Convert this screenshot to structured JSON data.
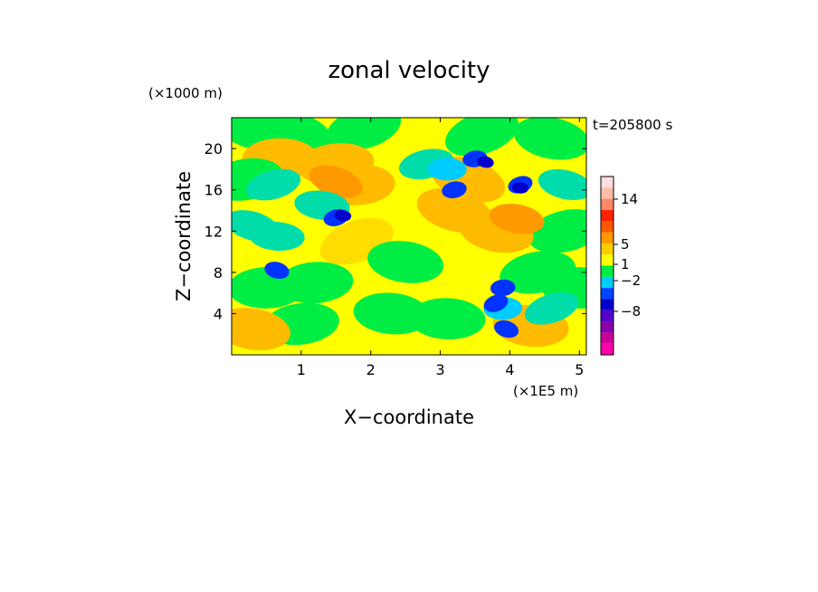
{
  "chart_data": {
    "type": "heatmap",
    "title": "zonal velocity",
    "xlabel": "X−coordinate",
    "ylabel": "Z−coordinate",
    "x_unit": "(×1E5 m)",
    "y_unit": "(×1000 m)",
    "time_label": "t=205800 s",
    "xlim": [
      0,
      5.1
    ],
    "ylim": [
      0,
      23
    ],
    "x_ticks": [
      "1",
      "2",
      "3",
      "4",
      "5"
    ],
    "x_tick_values": [
      1,
      2,
      3,
      4,
      5
    ],
    "y_ticks": [
      "4",
      "8",
      "12",
      "16",
      "20"
    ],
    "y_tick_values": [
      4,
      8,
      12,
      16,
      20
    ],
    "colorbar": {
      "tick_labels": [
        "14",
        "5",
        "1",
        "−2",
        "−8"
      ],
      "tick_values": [
        14,
        5,
        1,
        -2,
        -8
      ],
      "colors": [
        "#ff00aa",
        "#cc0099",
        "#8800aa",
        "#5500cc",
        "#0000cc",
        "#0044ff",
        "#00ccff",
        "#00ee44",
        "#ffff00",
        "#ffcc00",
        "#ff9900",
        "#ff5500",
        "#ff2200",
        "#ff8866",
        "#ffbbaa",
        "#ffdddd"
      ]
    },
    "dominant_values": {
      "background": "#ffff00",
      "secondary": "#00ee44",
      "cyan": "#00ccff",
      "orange": "#ffaa00",
      "blue": "#0000cc",
      "navy": "#0033ff"
    },
    "features": [
      {
        "x": 0.3,
        "z": 22.0,
        "v": -1.0
      },
      {
        "x": 0.9,
        "z": 21.5,
        "v": -1.0
      },
      {
        "x": 1.9,
        "z": 22.0,
        "v": -1.2
      },
      {
        "x": 3.6,
        "z": 21.5,
        "v": -1.2
      },
      {
        "x": 4.6,
        "z": 21.0,
        "v": -1.0
      },
      {
        "x": 0.7,
        "z": 19.0,
        "v": 1.3
      },
      {
        "x": 1.5,
        "z": 18.5,
        "v": 1.4
      },
      {
        "x": 1.8,
        "z": 16.5,
        "v": 1.3
      },
      {
        "x": 1.5,
        "z": 16.8,
        "v": 1.8
      },
      {
        "x": 0.2,
        "z": 17.0,
        "v": -1.4
      },
      {
        "x": 0.6,
        "z": 16.5,
        "v": -1.6
      },
      {
        "x": 1.3,
        "z": 14.5,
        "v": -2.0
      },
      {
        "x": 1.5,
        "z": 13.3,
        "v": -3.5
      },
      {
        "x": 1.6,
        "z": 13.5,
        "v": -4.5
      },
      {
        "x": 0.3,
        "z": 12.5,
        "v": -1.8
      },
      {
        "x": 0.65,
        "z": 11.5,
        "v": -2.0
      },
      {
        "x": 0.65,
        "z": 8.2,
        "v": -4.0
      },
      {
        "x": 2.8,
        "z": 18.5,
        "v": -1.5
      },
      {
        "x": 3.1,
        "z": 18.0,
        "v": -2.4
      },
      {
        "x": 3.5,
        "z": 19.0,
        "v": -3.2
      },
      {
        "x": 3.65,
        "z": 18.7,
        "v": -4.2
      },
      {
        "x": 4.15,
        "z": 16.5,
        "v": -3.6
      },
      {
        "x": 4.15,
        "z": 16.2,
        "v": -4.5
      },
      {
        "x": 3.2,
        "z": 16.0,
        "v": -3.4
      },
      {
        "x": 4.8,
        "z": 16.5,
        "v": -1.8
      },
      {
        "x": 3.4,
        "z": 17.0,
        "v": 1.2
      },
      {
        "x": 4.1,
        "z": 13.2,
        "v": 1.8
      },
      {
        "x": 3.2,
        "z": 14.0,
        "v": 1.2
      },
      {
        "x": 3.8,
        "z": 12.0,
        "v": 1.2
      },
      {
        "x": 2.5,
        "z": 9.0,
        "v": -1.0
      },
      {
        "x": 2.3,
        "z": 4.0,
        "v": -1.0
      },
      {
        "x": 3.1,
        "z": 3.5,
        "v": -1.0
      },
      {
        "x": 0.5,
        "z": 6.5,
        "v": -1.0
      },
      {
        "x": 1.2,
        "z": 7.0,
        "v": -1.0
      },
      {
        "x": 1.0,
        "z": 3.0,
        "v": -1.0
      },
      {
        "x": 4.4,
        "z": 8.0,
        "v": -1.0
      },
      {
        "x": 4.8,
        "z": 12.0,
        "v": -1.0
      },
      {
        "x": 1.8,
        "z": 11.0,
        "v": 0.6
      },
      {
        "x": 0.3,
        "z": 2.5,
        "v": 1.2
      },
      {
        "x": 3.9,
        "z": 4.5,
        "v": -2.5
      },
      {
        "x": 3.8,
        "z": 5.0,
        "v": -3.8
      },
      {
        "x": 3.95,
        "z": 2.5,
        "v": -3.8
      },
      {
        "x": 3.9,
        "z": 6.5,
        "v": -3.0
      },
      {
        "x": 4.3,
        "z": 2.8,
        "v": 1.2
      },
      {
        "x": 4.6,
        "z": 4.5,
        "v": -1.6
      },
      {
        "x": 5.0,
        "z": 6.5,
        "v": -1.2
      }
    ]
  }
}
